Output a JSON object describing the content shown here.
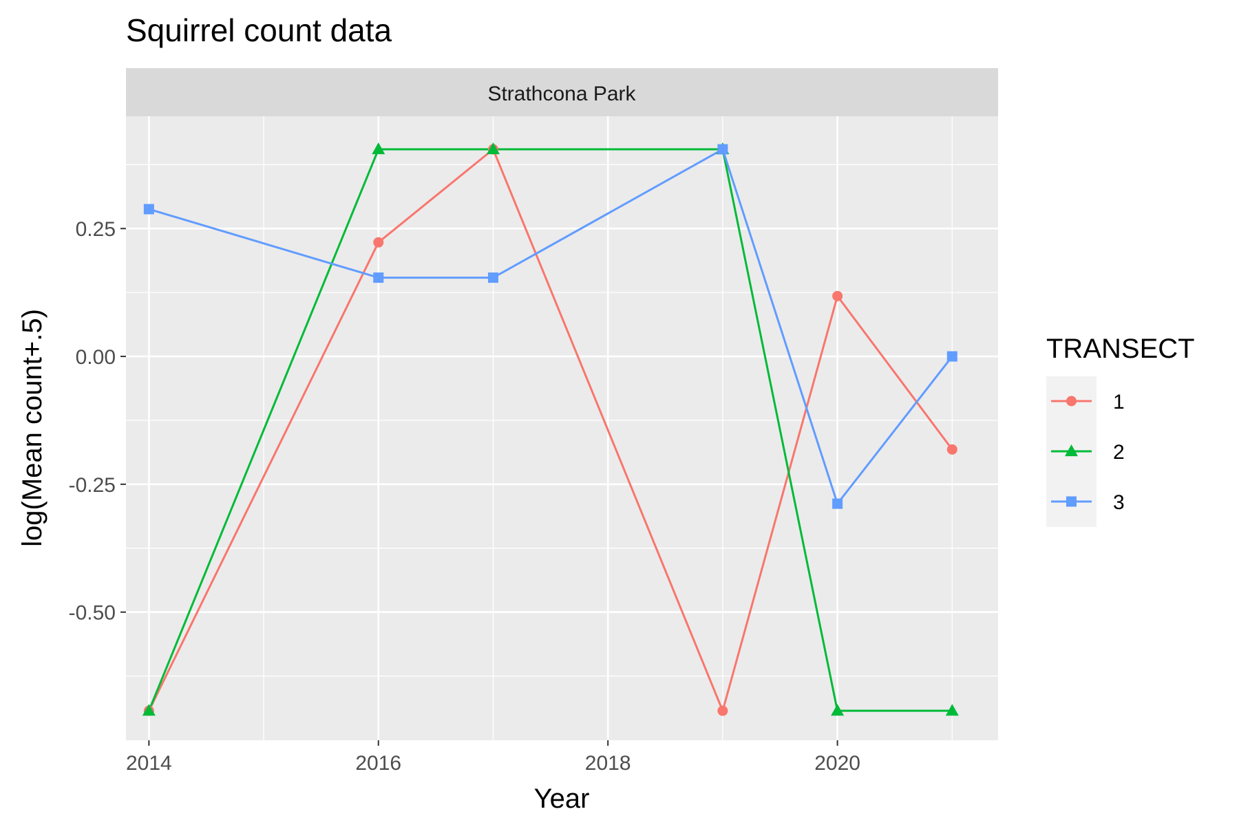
{
  "chart_data": {
    "type": "line",
    "title": "Squirrel count data",
    "facet_label": "Strathcona Park",
    "xlabel": "Year",
    "ylabel": "log(Mean count+.5)",
    "xlim": [
      2013.8,
      2021.4
    ],
    "ylim": [
      -0.7506,
      0.4696
    ],
    "x_ticks": [
      2014,
      2016,
      2018,
      2020
    ],
    "x_tick_labels": [
      "2014",
      "2016",
      "2018",
      "2020"
    ],
    "y_ticks": [
      0.25,
      0.0,
      -0.25,
      -0.5
    ],
    "y_tick_labels": [
      "0.25",
      "0.00",
      "-0.25",
      "-0.50"
    ],
    "grid": true,
    "legend": {
      "title": "TRANSECT",
      "position": "right"
    },
    "series": [
      {
        "name": "1",
        "color": "#F8766D",
        "marker": "circle",
        "x": [
          2014,
          2016,
          2017,
          2019,
          2020,
          2021
        ],
        "y": [
          -0.693,
          0.223,
          0.405,
          -0.693,
          0.118,
          -0.182
        ]
      },
      {
        "name": "2",
        "color": "#00BA38",
        "marker": "triangle",
        "x": [
          2014,
          2016,
          2017,
          2019,
          2020,
          2021
        ],
        "y": [
          -0.693,
          0.405,
          0.405,
          0.405,
          -0.693,
          -0.693
        ]
      },
      {
        "name": "3",
        "color": "#619CFF",
        "marker": "square",
        "x": [
          2014,
          2016,
          2017,
          2019,
          2020,
          2021
        ],
        "y": [
          0.288,
          0.154,
          0.154,
          0.405,
          -0.288,
          0.0
        ]
      }
    ]
  }
}
